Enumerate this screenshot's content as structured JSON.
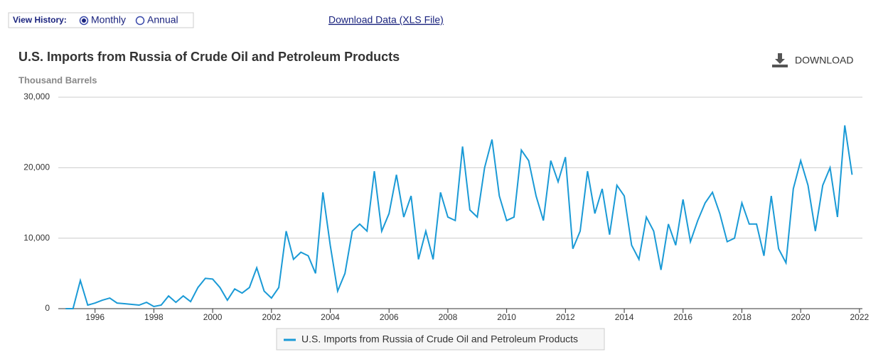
{
  "controls": {
    "view_history": {
      "label": "View History:",
      "options": [
        "Monthly",
        "Annual"
      ],
      "selected": "Monthly"
    },
    "download_link": "Download Data (XLS File)",
    "download_button": "DOWNLOAD"
  },
  "chart_data": {
    "type": "line",
    "title": "U.S. Imports from Russia of Crude Oil and Petroleum Products",
    "ylabel": "Thousand Barrels",
    "x": [
      1995,
      1995.25,
      1995.5,
      1995.75,
      1996,
      1996.25,
      1996.5,
      1996.75,
      1997,
      1997.25,
      1997.5,
      1997.75,
      1998,
      1998.25,
      1998.5,
      1998.75,
      1999,
      1999.25,
      1999.5,
      1999.75,
      2000,
      2000.25,
      2000.5,
      2000.75,
      2001,
      2001.25,
      2001.5,
      2001.75,
      2002,
      2002.25,
      2002.5,
      2002.75,
      2003,
      2003.25,
      2003.5,
      2003.75,
      2004,
      2004.25,
      2004.5,
      2004.75,
      2005,
      2005.25,
      2005.5,
      2005.75,
      2006,
      2006.25,
      2006.5,
      2006.75,
      2007,
      2007.25,
      2007.5,
      2007.75,
      2008,
      2008.25,
      2008.5,
      2008.75,
      2009,
      2009.25,
      2009.5,
      2009.75,
      2010,
      2010.25,
      2010.5,
      2010.75,
      2011,
      2011.25,
      2011.5,
      2011.75,
      2012,
      2012.25,
      2012.5,
      2012.75,
      2013,
      2013.25,
      2013.5,
      2013.75,
      2014,
      2014.25,
      2014.5,
      2014.75,
      2015,
      2015.25,
      2015.5,
      2015.75,
      2016,
      2016.25,
      2016.5,
      2016.75,
      2017,
      2017.25,
      2017.5,
      2017.75,
      2018,
      2018.25,
      2018.5,
      2018.75,
      2019,
      2019.25,
      2019.5,
      2019.75,
      2020,
      2020.25,
      2020.5,
      2020.75,
      2021,
      2021.25,
      2021.5,
      2021.75
    ],
    "series": [
      {
        "name": "U.S. Imports from Russia of Crude Oil and Petroleum Products",
        "color": "#1a9ad6",
        "values": [
          0,
          0,
          4000,
          500,
          800,
          1200,
          1500,
          800,
          700,
          600,
          500,
          900,
          300,
          500,
          1800,
          900,
          1800,
          1000,
          3000,
          4300,
          4200,
          3000,
          1200,
          2800,
          2200,
          3000,
          5800,
          2500,
          1500,
          3000,
          11000,
          7000,
          8000,
          7500,
          5000,
          16500,
          9000,
          2500,
          5000,
          11000,
          12000,
          11000,
          19500,
          11000,
          13500,
          19000,
          13000,
          16000,
          7000,
          11000,
          7000,
          16500,
          13000,
          12500,
          23000,
          14000,
          13000,
          20000,
          24000,
          16000,
          12500,
          13000,
          22500,
          21000,
          16000,
          12500,
          21000,
          18000,
          21500,
          8500,
          11000,
          19500,
          13500,
          17000,
          10500,
          17500,
          16000,
          9000,
          7000,
          13000,
          11000,
          5500,
          12000,
          9000,
          15500,
          9500,
          12500,
          15000,
          16500,
          13500,
          9500,
          10000,
          15000,
          12000,
          12000,
          7500,
          16000,
          8500,
          6500,
          17000,
          21000,
          17500,
          11000,
          17500,
          20000,
          13000,
          26000,
          19000
        ]
      }
    ],
    "xlim": [
      1994.75,
      2022.1
    ],
    "xticks": [
      1996,
      1998,
      2000,
      2002,
      2004,
      2006,
      2008,
      2010,
      2012,
      2014,
      2016,
      2018,
      2020,
      2022
    ],
    "ylim": [
      0,
      30000
    ],
    "yticks": [
      0,
      {
        "value": 10000,
        "label": "10,000"
      },
      {
        "value": 20000,
        "label": "20,000"
      },
      {
        "value": 30000,
        "label": "30,000"
      }
    ],
    "grid": true,
    "legend": "bottom"
  }
}
